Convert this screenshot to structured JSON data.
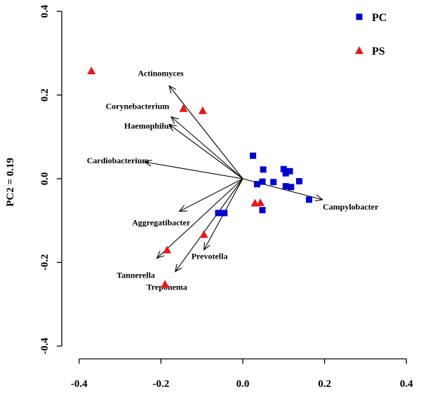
{
  "chart_data": {
    "type": "scatter",
    "title": "",
    "xlabel": "",
    "ylabel": "PC2 = 0.19",
    "xlim": [
      -0.44,
      0.42
    ],
    "ylim": [
      -0.44,
      0.42
    ],
    "x_ticks": [
      -0.4,
      -0.2,
      0.0,
      0.2,
      0.4
    ],
    "x_tick_labels": [
      "-0.4",
      "-0.2",
      "0.0",
      "0.2",
      "0.4"
    ],
    "y_ticks": [
      -0.4,
      -0.2,
      0.0,
      0.2,
      0.4
    ],
    "y_tick_labels": [
      "-0.4",
      "-0.2",
      "0.0",
      "0.2",
      "0.4"
    ],
    "grid": false,
    "legend_position": "top-right",
    "series": [
      {
        "name": "PC",
        "marker": "square",
        "color": "#0000cc",
        "points": [
          {
            "x": 0.025,
            "y": 0.055
          },
          {
            "x": 0.05,
            "y": 0.022
          },
          {
            "x": 0.1,
            "y": 0.023
          },
          {
            "x": 0.115,
            "y": 0.018
          },
          {
            "x": 0.105,
            "y": 0.013
          },
          {
            "x": 0.035,
            "y": -0.013
          },
          {
            "x": 0.048,
            "y": -0.007
          },
          {
            "x": 0.075,
            "y": -0.008
          },
          {
            "x": 0.138,
            "y": -0.006
          },
          {
            "x": 0.105,
            "y": -0.018
          },
          {
            "x": 0.118,
            "y": -0.02
          },
          {
            "x": 0.162,
            "y": -0.05
          },
          {
            "x": 0.048,
            "y": -0.075
          },
          {
            "x": -0.06,
            "y": -0.082
          },
          {
            "x": -0.045,
            "y": -0.082
          }
        ]
      },
      {
        "name": "PS",
        "marker": "triangle",
        "color": "#e61919",
        "points": [
          {
            "x": -0.37,
            "y": 0.258
          },
          {
            "x": -0.145,
            "y": 0.168
          },
          {
            "x": -0.098,
            "y": 0.163
          },
          {
            "x": 0.03,
            "y": -0.058
          },
          {
            "x": 0.043,
            "y": -0.057
          },
          {
            "x": -0.095,
            "y": -0.133
          },
          {
            "x": -0.185,
            "y": -0.17
          },
          {
            "x": -0.19,
            "y": -0.252
          }
        ]
      }
    ],
    "vectors": [
      {
        "label": "Actinomyces",
        "x": -0.18,
        "y": 0.222
      },
      {
        "label": "Corynebacterium",
        "x": -0.175,
        "y": 0.148
      },
      {
        "label": "Haemophilus",
        "x": -0.18,
        "y": 0.13
      },
      {
        "label": "Cardiobacterium",
        "x": -0.24,
        "y": 0.04
      },
      {
        "label": "Aggregatibacter",
        "x": -0.155,
        "y": -0.078
      },
      {
        "label": "Tannerella",
        "x": -0.21,
        "y": -0.19
      },
      {
        "label": "Treponema",
        "x": -0.165,
        "y": -0.222
      },
      {
        "label": "Prevotella",
        "x": -0.095,
        "y": -0.17
      },
      {
        "label": "Campylobacter",
        "x": 0.195,
        "y": -0.05
      }
    ]
  }
}
